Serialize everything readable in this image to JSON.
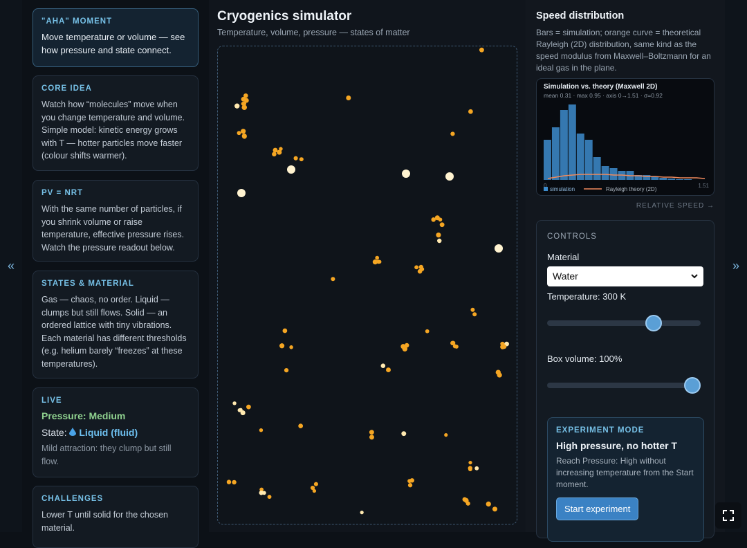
{
  "nav": {
    "left": "«",
    "right": "»"
  },
  "cards": [
    {
      "title": "\"AHA\" MOMENT",
      "body": "Move temperature or volume — see how pressure and state connect."
    },
    {
      "title": "CORE IDEA",
      "body": "Watch how “molecules” move when you change temperature and volume. Simple model: kinetic energy grows with T — hotter particles move faster (colour shifts warmer)."
    },
    {
      "title": "PV = NRT",
      "body": "With the same number of particles, if you shrink volume or raise temperature, effective pressure rises. Watch the pressure readout below."
    },
    {
      "title": "STATES & MATERIAL",
      "body": "Gas — chaos, no order. Liquid — clumps but still flows. Solid — an ordered lattice with tiny vibrations. Each material has different thresholds (e.g. helium barely “freezes” at these temperatures)."
    },
    {
      "title": "CHALLENGES",
      "body": "Lower T until solid for the chosen material."
    }
  ],
  "live": {
    "title": "LIVE",
    "pressure": "Pressure: Medium",
    "state_label": "State:",
    "state_value": "Liquid (fluid)",
    "note": "Mild attraction: they clump but still flow."
  },
  "main": {
    "title": "Cryogenics simulator",
    "subtitle": "Temperature, volume, pressure — states of matter"
  },
  "speed": {
    "title": "Speed distribution",
    "description": "Bars = simulation; orange curve = theoretical Rayleigh (2D) distribution, same kind as the speed modulus from Maxwell–Boltzmann for an ideal gas in the plane.",
    "axis_caption": "RELATIVE SPEED →"
  },
  "chart_data": {
    "type": "histogram",
    "title": "Simulation vs. theory (Maxwell 2D)",
    "subtitle": "mean 0.31 · max 0.95 · axis 0→1.51 · σ=0.92",
    "bins": [
      0,
      0.0755,
      0.151,
      0.2265,
      0.302,
      0.3775,
      0.453,
      0.5285,
      0.604,
      0.6795,
      0.755,
      0.8305,
      0.906,
      0.9815,
      1.057,
      1.1325,
      1.208,
      1.2835,
      1.359,
      1.4345,
      1.51
    ],
    "series": [
      {
        "name": "simulation",
        "color": "#3d8ccc",
        "values": [
          58,
          76,
          101,
          109,
          67,
          58,
          33,
          20,
          17,
          13,
          13,
          7,
          7,
          5,
          3,
          2,
          1,
          1,
          0,
          0
        ]
      },
      {
        "name": "Rayleigh theory (2D)",
        "color": "#f08a5d",
        "values": [
          2,
          4,
          6,
          7,
          8,
          8,
          8,
          8,
          7,
          7,
          6,
          6,
          5,
          5,
          4,
          4,
          3,
          3,
          3,
          2
        ]
      }
    ],
    "xlim": [
      0,
      1.51
    ],
    "xticks": [
      0,
      1.51
    ],
    "ylim": [
      0,
      118
    ]
  },
  "controls": {
    "title": "CONTROLS",
    "material_label": "Material",
    "material": "Water",
    "temperature_label": "Temperature: 300 K",
    "volume_label": "Box volume: 100%"
  },
  "experiment": {
    "title": "EXPERIMENT MODE",
    "heading": "High pressure, no hotter T",
    "body": "Reach Pressure: High without increasing temperature from the Start moment.",
    "button": "Start experiment"
  }
}
